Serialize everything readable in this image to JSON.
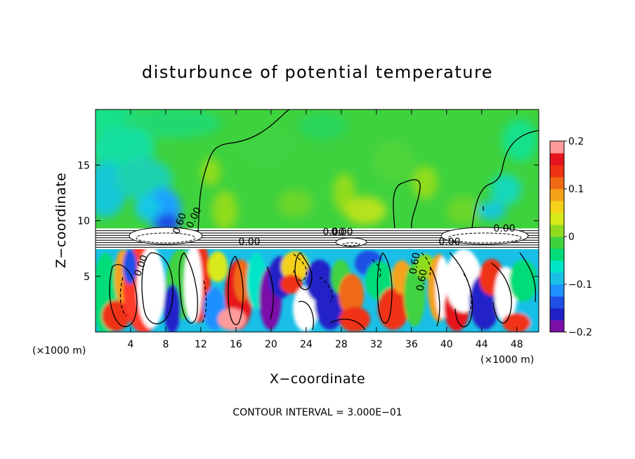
{
  "chart_data": {
    "type": "heatmap",
    "title": "disturbunce of potential temperature",
    "xlabel": "X−coordinate",
    "ylabel": "Z−coordinate",
    "x_unit": "(×1000 m)",
    "xlim": [
      0,
      50.5
    ],
    "ylim": [
      0,
      20
    ],
    "x_ticks": [
      4,
      8,
      12,
      16,
      20,
      24,
      28,
      32,
      36,
      40,
      44,
      48
    ],
    "y_ticks": [
      5,
      10,
      15
    ],
    "colorbar": {
      "ticks": [
        "0.2",
        "0.1",
        "0",
        "−0.1",
        "−0.2"
      ],
      "tick_values": [
        0.2,
        0.1,
        0,
        -0.1,
        -0.2
      ],
      "range": [
        -0.2,
        0.2
      ],
      "colors": [
        "#7b0fa8",
        "#2020c8",
        "#1f4fe6",
        "#1e90ff",
        "#19bfe6",
        "#00e5c8",
        "#00dc78",
        "#3fd23f",
        "#8fdc1f",
        "#d8ea1a",
        "#f4d21a",
        "#f5a21a",
        "#f06a14",
        "#f03212",
        "#e6141e",
        "#ff9a9a"
      ]
    },
    "regions": {
      "upper_field_color": "#3fd23f",
      "layer_base_z": 8,
      "layer_top_z": 9.3
    },
    "contour_interval_text": "CONTOUR INTERVAL = 3.000E−01",
    "contour_labels": [
      "0.00",
      "0.00",
      "0.00",
      "0.00",
      "0.60",
      "0.60",
      "0.00",
      "0.00",
      "0.60",
      "0.00"
    ]
  }
}
